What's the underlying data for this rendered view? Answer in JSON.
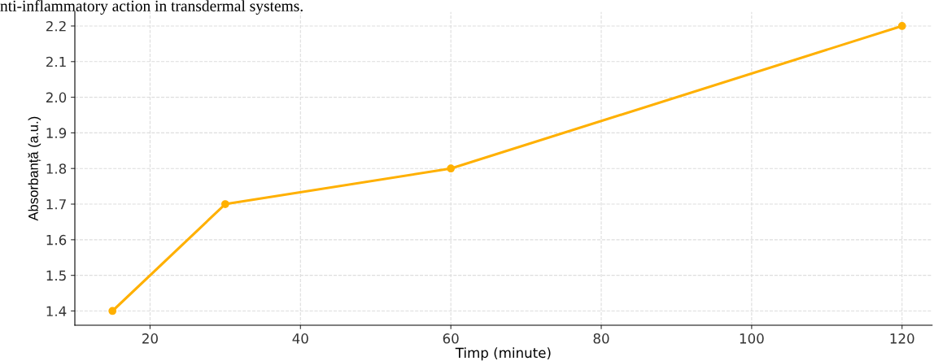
{
  "chart_data": {
    "type": "line",
    "xlabel": "Timp (minute)",
    "ylabel": "Absorbanță (a.u.)",
    "annotations": [
      "nti-inflammatory action in transdermal systems."
    ],
    "x": [
      15,
      30,
      60,
      120
    ],
    "series": [
      {
        "color": "#ffb000",
        "values": [
          1.4,
          1.7,
          1.8,
          2.2
        ]
      }
    ],
    "xlim": [
      10,
      124
    ],
    "xticks": [
      20,
      40,
      60,
      80,
      100,
      120
    ],
    "ylim": [
      1.36,
      2.24
    ],
    "yticks": [
      1.4,
      1.5,
      1.6,
      1.7,
      1.8,
      1.9,
      {
        "value": 2.0,
        "label": "2.0"
      },
      2.1,
      2.2
    ],
    "grid": true,
    "marker": "circle",
    "line_style": "solid"
  }
}
